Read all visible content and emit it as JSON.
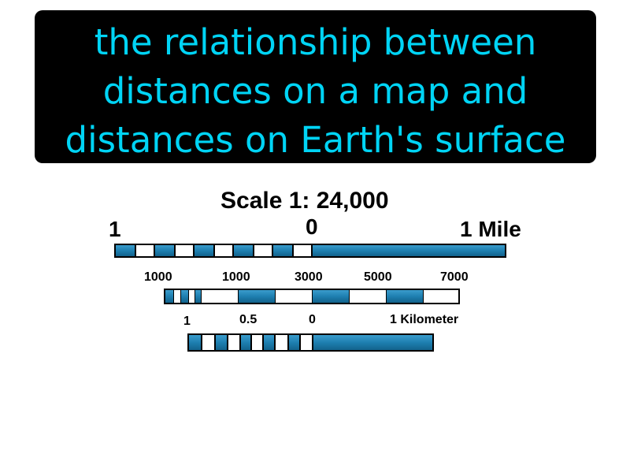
{
  "definition": {
    "lines": [
      "the relationship between",
      "distances on a map and",
      "distances on Earth's surface"
    ]
  },
  "scale": {
    "title": "Scale 1: 24,000",
    "miles": {
      "left": "1",
      "zero": "0",
      "right": "1 Mile"
    },
    "feet": {
      "labels": [
        "1000",
        "1000",
        "3000",
        "5000",
        "7000"
      ]
    },
    "kilometers": {
      "left": "1",
      "half": "0.5",
      "zero": "0",
      "right": "1 Kilometer"
    }
  },
  "colors": {
    "accent": "#00d4f5",
    "bar_fill": "#1e7fb0",
    "box": "#000000"
  }
}
